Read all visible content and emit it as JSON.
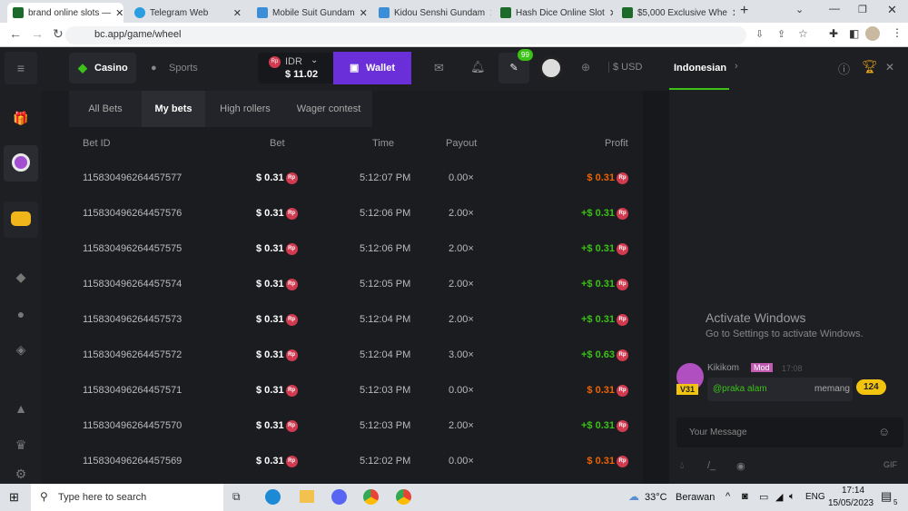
{
  "browser": {
    "tabs": [
      {
        "title": "brand online slots — ",
        "active": true
      },
      {
        "title": "Telegram Web"
      },
      {
        "title": "Mobile Suit Gundam"
      },
      {
        "title": "Kidou Senshi Gundam"
      },
      {
        "title": "Hash Dice Online Slot"
      },
      {
        "title": "$5,000 Exclusive Whe"
      }
    ],
    "new_tab": "+",
    "url": "bc.app/game/wheel"
  },
  "header": {
    "casino": "Casino",
    "sports": "Sports",
    "currency": "IDR",
    "balance": "$ 11.02",
    "wallet": "Wallet",
    "chat_badge": "99",
    "fiat": "$ USD"
  },
  "chat": {
    "language": "Indonesian",
    "message": {
      "user": "Kikikom",
      "role": "Mod",
      "time": "17:08",
      "level": "V31",
      "text_mention": "@praka alam",
      "text": "memang"
    },
    "unread_count": "124",
    "input_placeholder": "Your Message",
    "watermark_title": "Activate Windows",
    "watermark_sub": "Go to Settings to activate Windows."
  },
  "bets": {
    "tabs": [
      "All Bets",
      "My bets",
      "High rollers",
      "Wager contest"
    ],
    "active_tab": "My bets",
    "columns": [
      "Bet ID",
      "Bet",
      "Time",
      "Payout",
      "Profit"
    ],
    "rows": [
      {
        "id": "115830496264457577",
        "bet": "$ 0.31",
        "time": "5:12:07 PM",
        "payout": "0.00×",
        "profit": "$ 0.31",
        "win": false
      },
      {
        "id": "115830496264457576",
        "bet": "$ 0.31",
        "time": "5:12:06 PM",
        "payout": "2.00×",
        "profit": "+$ 0.31",
        "win": true
      },
      {
        "id": "115830496264457575",
        "bet": "$ 0.31",
        "time": "5:12:06 PM",
        "payout": "2.00×",
        "profit": "+$ 0.31",
        "win": true
      },
      {
        "id": "115830496264457574",
        "bet": "$ 0.31",
        "time": "5:12:05 PM",
        "payout": "2.00×",
        "profit": "+$ 0.31",
        "win": true
      },
      {
        "id": "115830496264457573",
        "bet": "$ 0.31",
        "time": "5:12:04 PM",
        "payout": "2.00×",
        "profit": "+$ 0.31",
        "win": true
      },
      {
        "id": "115830496264457572",
        "bet": "$ 0.31",
        "time": "5:12:04 PM",
        "payout": "3.00×",
        "profit": "+$ 0.63",
        "win": true
      },
      {
        "id": "115830496264457571",
        "bet": "$ 0.31",
        "time": "5:12:03 PM",
        "payout": "0.00×",
        "profit": "$ 0.31",
        "win": false
      },
      {
        "id": "115830496264457570",
        "bet": "$ 0.31",
        "time": "5:12:03 PM",
        "payout": "2.00×",
        "profit": "+$ 0.31",
        "win": true
      },
      {
        "id": "115830496264457569",
        "bet": "$ 0.31",
        "time": "5:12:02 PM",
        "payout": "0.00×",
        "profit": "$ 0.31",
        "win": false
      }
    ],
    "coin": "Rp"
  },
  "colors": {
    "win": "#3bc117",
    "loss": "#ed6300",
    "accent": "#6b2fd9",
    "green": "#3bc117"
  },
  "taskbar": {
    "search": "Type here to search",
    "weather": "33°C",
    "weather_desc": "Berawan",
    "lang": "ENG",
    "time": "17:14",
    "date": "15/05/2023",
    "notif": "5"
  }
}
